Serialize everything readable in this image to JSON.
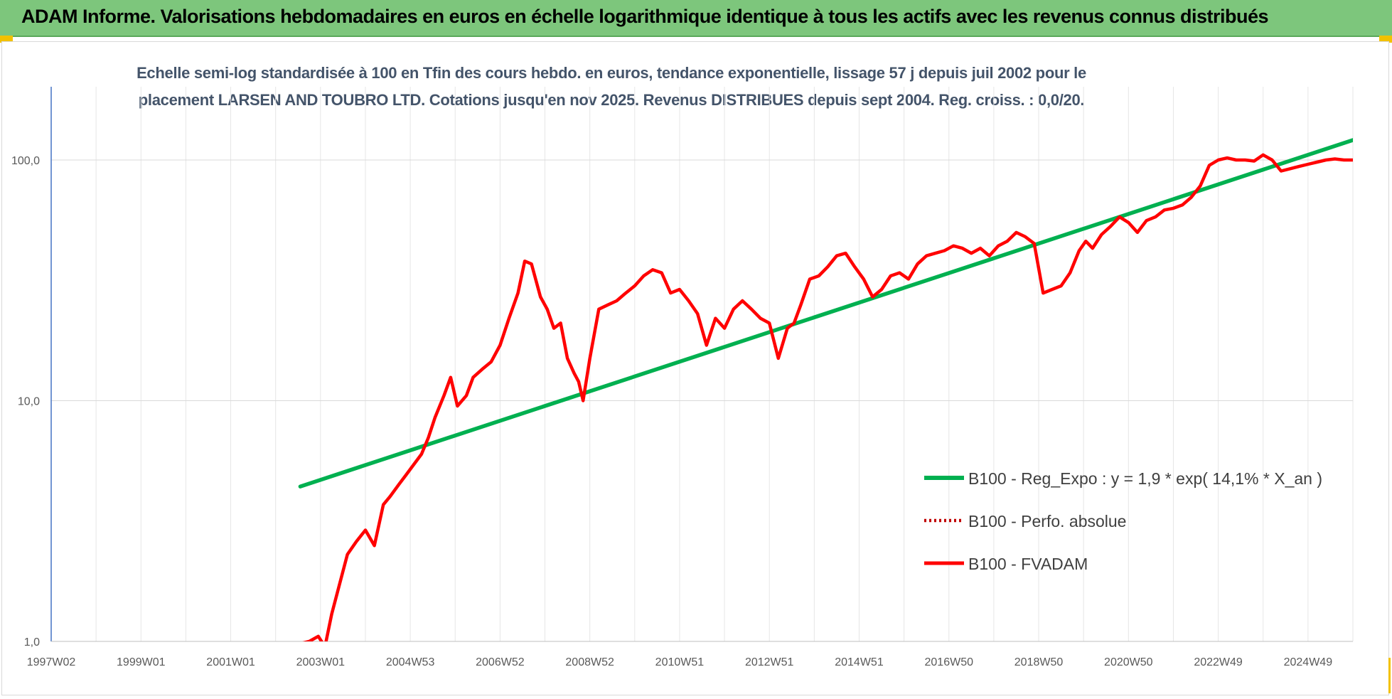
{
  "banner": {
    "title": "ADAM Informe. Valorisations hebdomadaires en euros en échelle logarithmique identique à tous les actifs avec les revenus connus distribués"
  },
  "colors": {
    "banner_bg": "#7dc67c",
    "trend": "#00b050",
    "fvadam": "#ff0000",
    "perfo": "#c00000",
    "title_text": "#44546a",
    "accent": "#f2c100"
  },
  "chart_data": {
    "type": "line",
    "title_line1": "Echelle semi-log standardisée à 100 en Tfin des cours hebdo. en euros, tendance exponentielle, lissage 57 j depuis juil 2002 pour le",
    "title_line2": "placement LARSEN AND TOUBRO LTD. Cotations jusqu'en nov 2025. Revenus DISTRIBUES depuis sept 2004. Reg. croiss. : 0,0/20.",
    "y_scale": "log",
    "ylim": [
      1,
      180
    ],
    "y_ticks": [
      {
        "value": 1,
        "label": "1,0"
      },
      {
        "value": 10,
        "label": "10,0"
      },
      {
        "value": 100,
        "label": "100,0"
      }
    ],
    "xlim": [
      1997.0,
      2026.0
    ],
    "x_ticks": [
      {
        "value": 1997.0,
        "label": "1997W02"
      },
      {
        "value": 1999.0,
        "label": "1999W01"
      },
      {
        "value": 2001.0,
        "label": "2001W01"
      },
      {
        "value": 2003.0,
        "label": "2003W01"
      },
      {
        "value": 2005.0,
        "label": "2004W53"
      },
      {
        "value": 2007.0,
        "label": "2006W52"
      },
      {
        "value": 2009.0,
        "label": "2008W52"
      },
      {
        "value": 2011.0,
        "label": "2010W51"
      },
      {
        "value": 2013.0,
        "label": "2012W51"
      },
      {
        "value": 2015.0,
        "label": "2014W51"
      },
      {
        "value": 2017.0,
        "label": "2016W50"
      },
      {
        "value": 2019.0,
        "label": "2018W50"
      },
      {
        "value": 2021.0,
        "label": "2020W50"
      },
      {
        "value": 2023.0,
        "label": "2022W49"
      },
      {
        "value": 2025.0,
        "label": "2024W49"
      }
    ],
    "grid": {
      "vertical": true,
      "horizontal": true
    },
    "legend_position": "right",
    "series": [
      {
        "name": "B100 - Reg_Expo : y = 1,9 * exp( 14,1% *  X_an )",
        "style": "solid-green",
        "x": [
          2002.55,
          2026.0
        ],
        "y": [
          4.4,
          121
        ]
      },
      {
        "name": "B100 - Perfo. absolue",
        "style": "dotted-red",
        "x": [],
        "y": []
      },
      {
        "name": "B100 - FVADAM",
        "style": "solid-red",
        "x": [
          2002.55,
          2002.75,
          2002.95,
          2003.1,
          2003.25,
          2003.45,
          2003.6,
          2003.8,
          2004.0,
          2004.2,
          2004.4,
          2004.55,
          2004.75,
          2004.9,
          2005.1,
          2005.25,
          2005.4,
          2005.55,
          2005.75,
          2005.9,
          2006.05,
          2006.25,
          2006.4,
          2006.6,
          2006.8,
          2007.0,
          2007.2,
          2007.4,
          2007.55,
          2007.7,
          2007.9,
          2008.05,
          2008.2,
          2008.35,
          2008.5,
          2008.65,
          2008.75,
          2008.85,
          2009.0,
          2009.2,
          2009.4,
          2009.6,
          2009.8,
          2010.0,
          2010.2,
          2010.4,
          2010.6,
          2010.8,
          2011.0,
          2011.2,
          2011.4,
          2011.6,
          2011.8,
          2012.0,
          2012.2,
          2012.4,
          2012.6,
          2012.8,
          2013.0,
          2013.2,
          2013.4,
          2013.55,
          2013.7,
          2013.9,
          2014.1,
          2014.3,
          2014.5,
          2014.7,
          2014.9,
          2015.1,
          2015.3,
          2015.5,
          2015.7,
          2015.9,
          2016.1,
          2016.3,
          2016.5,
          2016.7,
          2016.9,
          2017.1,
          2017.3,
          2017.5,
          2017.7,
          2017.9,
          2018.1,
          2018.3,
          2018.5,
          2018.7,
          2018.9,
          2019.1,
          2019.3,
          2019.5,
          2019.7,
          2019.9,
          2020.05,
          2020.2,
          2020.4,
          2020.6,
          2020.8,
          2021.0,
          2021.2,
          2021.4,
          2021.6,
          2021.8,
          2022.0,
          2022.2,
          2022.4,
          2022.6,
          2022.8,
          2023.0,
          2023.2,
          2023.4,
          2023.6,
          2023.8,
          2024.0,
          2024.2,
          2024.4,
          2024.6,
          2024.8,
          2025.0,
          2025.2,
          2025.4,
          2025.6,
          2025.8,
          2026.0
        ],
        "y": [
          0.98,
          1.0,
          1.05,
          0.95,
          1.3,
          1.8,
          2.3,
          2.6,
          2.9,
          2.5,
          3.7,
          4.0,
          4.5,
          4.9,
          5.5,
          6.0,
          7.0,
          8.5,
          10.5,
          12.5,
          9.5,
          10.5,
          12.5,
          13.5,
          14.5,
          17.0,
          22.0,
          28.0,
          38.0,
          37.0,
          27.0,
          24.0,
          20.0,
          21.0,
          15.0,
          13.0,
          12.0,
          10.0,
          15.0,
          24.0,
          25.0,
          26.0,
          28.0,
          30.0,
          33.0,
          35.0,
          34.0,
          28.0,
          29.0,
          26.0,
          23.0,
          17.0,
          22.0,
          20.0,
          24.0,
          26.0,
          24.0,
          22.0,
          21.0,
          15.0,
          20.0,
          21.0,
          25.0,
          32.0,
          33.0,
          36.0,
          40.0,
          41.0,
          36.0,
          32.0,
          27.0,
          29.0,
          33.0,
          34.0,
          32.0,
          37.0,
          40.0,
          41.0,
          42.0,
          44.0,
          43.0,
          41.0,
          43.0,
          40.0,
          44.0,
          46.0,
          50.0,
          48.0,
          45.0,
          28.0,
          29.0,
          30.0,
          34.0,
          42.0,
          46.0,
          43.0,
          49.0,
          53.0,
          58.0,
          55.0,
          50.0,
          56.0,
          58.0,
          62.0,
          63.0,
          65.0,
          70.0,
          78.0,
          95.0,
          100.0,
          102.0,
          100.0,
          100.0,
          99.0,
          105.0,
          100.0,
          90.0,
          92.0,
          94.0,
          96.0,
          98.0,
          100.0,
          101.0,
          100.0,
          100.0
        ]
      }
    ]
  }
}
